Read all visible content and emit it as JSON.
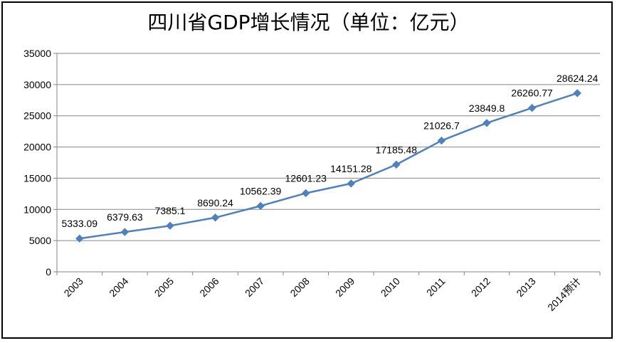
{
  "chart_data": {
    "type": "line",
    "title": "四川省GDP增长情况（单位：亿元）",
    "categories": [
      "2003",
      "2004",
      "2005",
      "2006",
      "2007",
      "2008",
      "2009",
      "2010",
      "2011",
      "2012",
      "2013",
      "2014预计"
    ],
    "series": [
      {
        "values": [
          5333.09,
          6379.63,
          7385.1,
          8690.24,
          10562.39,
          12601.23,
          14151.28,
          17185.48,
          21026.7,
          23849.8,
          26260.77,
          28624.24
        ],
        "labels": [
          "5333.09",
          "6379.63",
          "7385.1",
          "8690.24",
          "10562.39",
          "12601.23",
          "14151.28",
          "17185.48",
          "21026.7",
          "23849.8",
          "26260.77",
          "28624.24"
        ],
        "color": "#4F81BD"
      }
    ],
    "ylim": [
      0,
      35000
    ],
    "yticks": [
      "0",
      "5000",
      "10000",
      "15000",
      "20000",
      "25000",
      "30000",
      "35000"
    ],
    "grid": true,
    "legend": "none"
  }
}
